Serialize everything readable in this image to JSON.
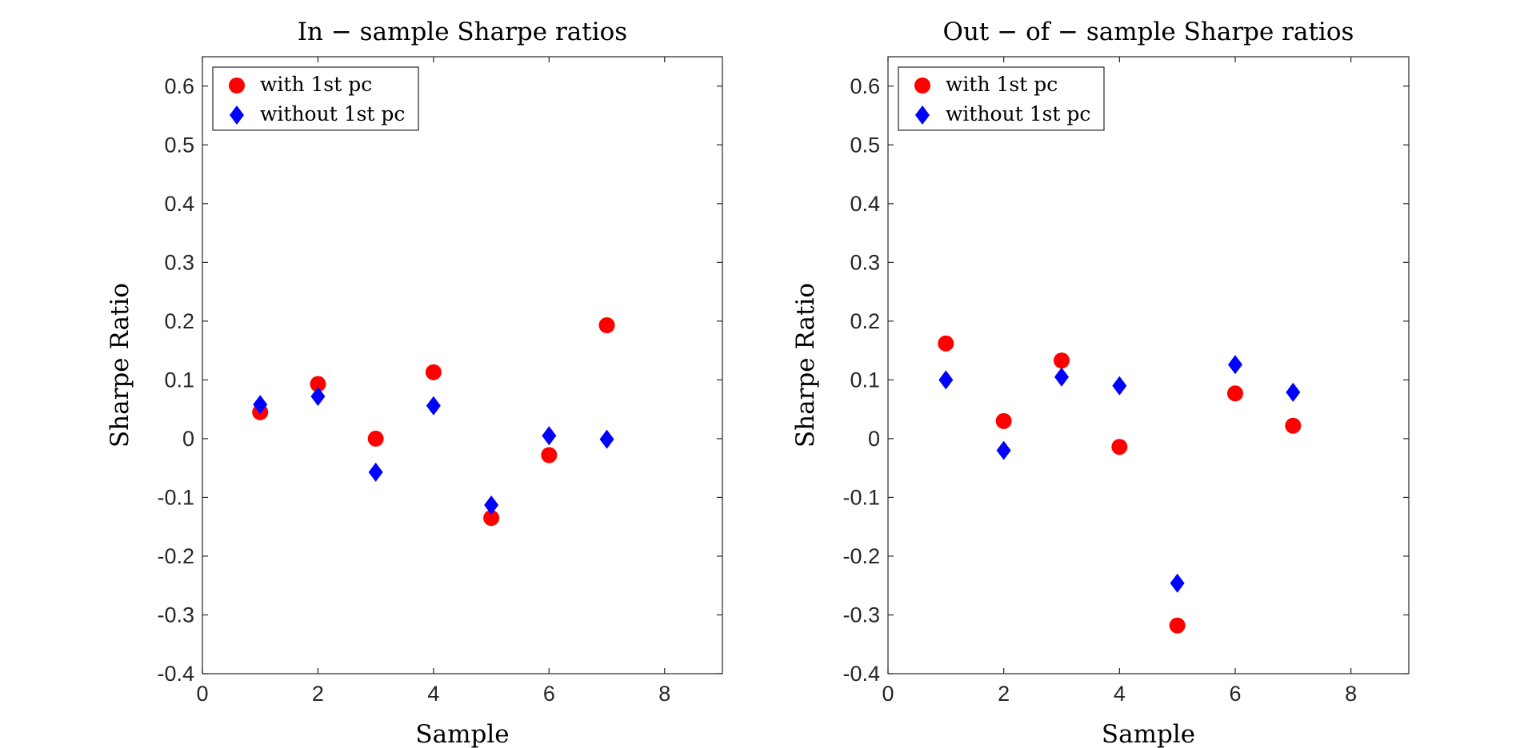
{
  "chart_data": [
    {
      "type": "scatter",
      "title": "In − sample Sharpe ratios",
      "xlabel": "Sample",
      "ylabel": "Sharpe Ratio",
      "xlim": [
        0,
        9
      ],
      "ylim": [
        -0.4,
        0.65
      ],
      "xticks": [
        0,
        2,
        4,
        6,
        8
      ],
      "yticks": [
        -0.4,
        -0.3,
        -0.2,
        -0.1,
        0,
        0.1,
        0.2,
        0.3,
        0.4,
        0.5,
        0.6
      ],
      "ytick_labels": [
        "-0.4",
        "-0.3",
        "-0.2",
        "-0.1",
        "0",
        "0.1",
        "0.2",
        "0.3",
        "0.4",
        "0.5",
        "0.6"
      ],
      "grid": false,
      "legend_position": "top-left",
      "series": [
        {
          "name": "with 1st pc",
          "marker": "circle",
          "color": "#ff0000",
          "x": [
            1,
            2,
            3,
            4,
            5,
            6,
            7
          ],
          "y": [
            0.045,
            0.093,
            0.0,
            0.113,
            -0.135,
            -0.028,
            0.193
          ]
        },
        {
          "name": "without 1st pc",
          "marker": "diamond",
          "color": "#0000ff",
          "x": [
            1,
            2,
            3,
            4,
            5,
            6,
            7
          ],
          "y": [
            0.058,
            0.072,
            -0.057,
            0.056,
            -0.113,
            0.005,
            -0.001
          ]
        }
      ]
    },
    {
      "type": "scatter",
      "title": "Out − of − sample Sharpe ratios",
      "xlabel": "Sample",
      "ylabel": "Sharpe Ratio",
      "xlim": [
        0,
        9
      ],
      "ylim": [
        -0.4,
        0.65
      ],
      "xticks": [
        0,
        2,
        4,
        6,
        8
      ],
      "yticks": [
        -0.4,
        -0.3,
        -0.2,
        -0.1,
        0,
        0.1,
        0.2,
        0.3,
        0.4,
        0.5,
        0.6
      ],
      "ytick_labels": [
        "-0.4",
        "-0.3",
        "-0.2",
        "-0.1",
        "0",
        "0.1",
        "0.2",
        "0.3",
        "0.4",
        "0.5",
        "0.6"
      ],
      "grid": false,
      "legend_position": "top-left",
      "series": [
        {
          "name": "with 1st pc",
          "marker": "circle",
          "color": "#ff0000",
          "x": [
            1,
            2,
            3,
            4,
            5,
            6,
            7
          ],
          "y": [
            0.162,
            0.03,
            0.133,
            -0.014,
            -0.318,
            0.077,
            0.022
          ]
        },
        {
          "name": "without 1st pc",
          "marker": "diamond",
          "color": "#0000ff",
          "x": [
            1,
            2,
            3,
            4,
            5,
            6,
            7
          ],
          "y": [
            0.1,
            -0.02,
            0.105,
            0.09,
            -0.246,
            0.126,
            0.079
          ]
        }
      ]
    }
  ]
}
